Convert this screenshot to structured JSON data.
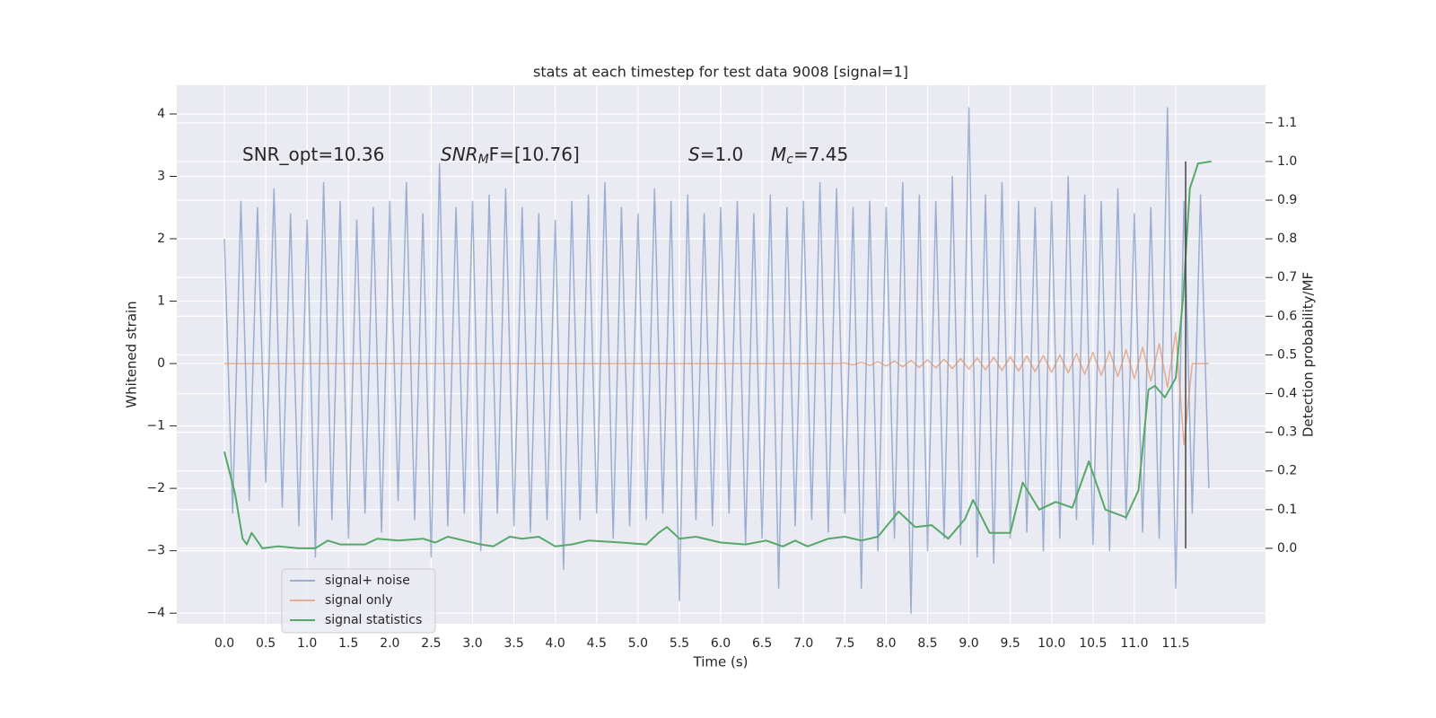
{
  "chart_data": {
    "type": "line",
    "title": "stats at each timestep for test data 9008 [signal=1]",
    "x_label": "Time (s)",
    "y_label": "Whitened strain",
    "y2_label": "Detection probability/MF",
    "annotations": [
      {
        "parts": [
          "SNR_opt=10.36"
        ]
      },
      {
        "parts": [
          "SNR",
          "M",
          "F=[10.76]"
        ]
      },
      {
        "parts": [
          "S",
          "=1.0"
        ]
      },
      {
        "parts": [
          "M",
          "c",
          "=7.45"
        ]
      }
    ],
    "xlim": [
      -0.575,
      12.585
    ],
    "ylim": [
      -4.17,
      4.46
    ],
    "y2lim": [
      -0.195,
      1.197
    ],
    "xticks": [
      {
        "value": 0,
        "label": "0.0"
      },
      {
        "value": 0.5,
        "label": "0.5"
      },
      {
        "value": 1,
        "label": "1.0"
      },
      {
        "value": 1.5,
        "label": "1.5"
      },
      {
        "value": 2,
        "label": "2.0"
      },
      {
        "value": 2.5,
        "label": "2.5"
      },
      {
        "value": 3,
        "label": "3.0"
      },
      {
        "value": 3.5,
        "label": "3.5"
      },
      {
        "value": 4,
        "label": "4.0"
      },
      {
        "value": 4.5,
        "label": "4.5"
      },
      {
        "value": 5,
        "label": "5.0"
      },
      {
        "value": 5.5,
        "label": "5.5"
      },
      {
        "value": 6,
        "label": "6.0"
      },
      {
        "value": 6.5,
        "label": "6.5"
      },
      {
        "value": 7,
        "label": "7.0"
      },
      {
        "value": 7.5,
        "label": "7.5"
      },
      {
        "value": 8,
        "label": "8.0"
      },
      {
        "value": 8.5,
        "label": "8.5"
      },
      {
        "value": 9,
        "label": "9.0"
      },
      {
        "value": 9.5,
        "label": "9.5"
      },
      {
        "value": 10,
        "label": "10.0"
      },
      {
        "value": 10.5,
        "label": "10.5"
      },
      {
        "value": 11,
        "label": "11.0"
      },
      {
        "value": 11.5,
        "label": "11.5"
      }
    ],
    "yticks": [
      {
        "value": -4,
        "label": "−4"
      },
      {
        "value": -3,
        "label": "−3"
      },
      {
        "value": -2,
        "label": "−2"
      },
      {
        "value": -1,
        "label": "−1"
      },
      0,
      1,
      2,
      3,
      4
    ],
    "y2ticks": [
      {
        "value": 0,
        "label": "0.0"
      },
      {
        "value": 0.1,
        "label": "0.1"
      },
      {
        "value": 0.2,
        "label": "0.2"
      },
      {
        "value": 0.3,
        "label": "0.3"
      },
      {
        "value": 0.4,
        "label": "0.4"
      },
      {
        "value": 0.5,
        "label": "0.5"
      },
      {
        "value": 0.6,
        "label": "0.6"
      },
      {
        "value": 0.7,
        "label": "0.7"
      },
      {
        "value": 0.8,
        "label": "0.8"
      },
      {
        "value": 0.9,
        "label": "0.9"
      },
      {
        "value": 1,
        "label": "1.0"
      },
      {
        "value": 1.1,
        "label": "1.1"
      }
    ],
    "grid": true,
    "legend": "lower left",
    "series": [
      {
        "name": "signal+ noise",
        "color": "#4c72b0",
        "opacity": 0.5,
        "x": [
          0.0,
          0.1,
          0.2,
          0.3,
          0.4,
          0.5,
          0.6,
          0.7,
          0.8,
          0.9,
          1.0,
          1.1,
          1.2,
          1.3,
          1.4,
          1.5,
          1.6,
          1.7,
          1.8,
          1.9,
          2.0,
          2.1,
          2.2,
          2.3,
          2.4,
          2.5,
          2.6,
          2.7,
          2.8,
          2.9,
          3.0,
          3.1,
          3.2,
          3.3,
          3.4,
          3.5,
          3.6,
          3.7,
          3.8,
          3.9,
          4.0,
          4.1,
          4.2,
          4.3,
          4.4,
          4.5,
          4.6,
          4.7,
          4.8,
          4.9,
          5.0,
          5.1,
          5.2,
          5.3,
          5.4,
          5.5,
          5.6,
          5.7,
          5.8,
          5.9,
          6.0,
          6.1,
          6.2,
          6.3,
          6.4,
          6.5,
          6.6,
          6.7,
          6.8,
          6.9,
          7.0,
          7.1,
          7.2,
          7.3,
          7.4,
          7.5,
          7.6,
          7.7,
          7.8,
          7.9,
          8.0,
          8.1,
          8.2,
          8.3,
          8.4,
          8.5,
          8.6,
          8.7,
          8.8,
          8.9,
          9.0,
          9.1,
          9.2,
          9.3,
          9.4,
          9.5,
          9.6,
          9.7,
          9.8,
          9.9,
          10.0,
          10.1,
          10.2,
          10.3,
          10.4,
          10.5,
          10.6,
          10.7,
          10.8,
          10.9,
          11.0,
          11.1,
          11.2,
          11.3,
          11.4,
          11.5,
          11.6,
          11.7,
          11.8,
          11.9
        ],
        "values": [
          2.0,
          -2.4,
          2.6,
          -2.2,
          2.5,
          -1.9,
          2.8,
          -2.3,
          2.4,
          -2.6,
          2.3,
          -3.1,
          2.9,
          -2.5,
          2.6,
          -2.8,
          2.3,
          -2.4,
          2.5,
          -2.7,
          2.6,
          -2.2,
          2.9,
          -2.5,
          2.4,
          -3.1,
          3.2,
          -2.6,
          2.5,
          -2.4,
          2.6,
          -3.0,
          2.7,
          -2.4,
          2.8,
          -2.6,
          2.5,
          -2.7,
          2.4,
          -2.5,
          2.3,
          -3.3,
          2.6,
          -2.5,
          2.7,
          -2.4,
          2.9,
          -2.8,
          2.5,
          -2.6,
          2.4,
          -2.5,
          2.8,
          -2.4,
          2.6,
          -3.8,
          2.7,
          -2.5,
          2.4,
          -2.6,
          2.5,
          -2.4,
          2.6,
          -2.9,
          2.4,
          -2.8,
          2.7,
          -3.6,
          2.5,
          -2.6,
          2.6,
          -2.5,
          2.9,
          -2.7,
          2.8,
          -2.4,
          2.5,
          -3.6,
          2.6,
          -3.0,
          2.5,
          -2.8,
          2.9,
          -4.0,
          2.7,
          -3.0,
          2.6,
          -2.8,
          3.0,
          -2.9,
          4.1,
          -3.1,
          2.7,
          -3.2,
          2.9,
          -2.8,
          2.6,
          -2.7,
          2.5,
          -3.0,
          2.6,
          -2.8,
          3.0,
          -2.5,
          2.7,
          -2.9,
          2.6,
          -3.0,
          2.8,
          -2.5,
          2.4,
          -2.7,
          2.5,
          -2.8,
          4.1,
          -3.6,
          2.6,
          -2.4,
          2.7,
          -2.0
        ]
      },
      {
        "name": "signal only",
        "color": "#dd8452",
        "opacity": 0.6,
        "x": [
          0.0,
          0.1,
          0.2,
          0.3,
          0.4,
          0.5,
          0.6,
          0.7,
          0.8,
          0.9,
          1.0,
          1.1,
          1.2,
          1.3,
          1.4,
          1.5,
          1.6,
          1.7,
          1.8,
          1.9,
          2.0,
          2.1,
          2.2,
          2.3,
          2.4,
          2.5,
          2.6,
          2.7,
          2.8,
          2.9,
          3.0,
          3.1,
          3.2,
          3.3,
          3.4,
          3.5,
          3.6,
          3.7,
          3.8,
          3.9,
          4.0,
          4.1,
          4.2,
          4.3,
          4.4,
          4.5,
          4.6,
          4.7,
          4.8,
          4.9,
          5.0,
          5.1,
          5.2,
          5.3,
          5.4,
          5.5,
          5.6,
          5.7,
          5.8,
          5.9,
          6.0,
          6.1,
          6.2,
          6.3,
          6.4,
          6.5,
          6.6,
          6.7,
          6.8,
          6.9,
          7.0,
          7.1,
          7.2,
          7.3,
          7.4,
          7.5,
          7.6,
          7.7,
          7.8,
          7.9,
          8.0,
          8.1,
          8.2,
          8.3,
          8.4,
          8.5,
          8.6,
          8.7,
          8.8,
          8.9,
          9.0,
          9.1,
          9.2,
          9.3,
          9.4,
          9.5,
          9.6,
          9.7,
          9.8,
          9.9,
          10.0,
          10.1,
          10.2,
          10.3,
          10.4,
          10.5,
          10.6,
          10.7,
          10.8,
          10.9,
          11.0,
          11.1,
          11.2,
          11.3,
          11.4,
          11.5,
          11.6,
          11.7,
          11.8,
          11.9
        ],
        "values": [
          0,
          0,
          0,
          0,
          0,
          0,
          0,
          0,
          0,
          0,
          0,
          0,
          0,
          0,
          0,
          0,
          0,
          0,
          0,
          0,
          0,
          0,
          0,
          0,
          0,
          0,
          0,
          0,
          0,
          0,
          0,
          0,
          0,
          0,
          0,
          0,
          0,
          0,
          0,
          0,
          0,
          0,
          0,
          0,
          0,
          0,
          0,
          0,
          0,
          0,
          0,
          0,
          0,
          0,
          0,
          0,
          0,
          0,
          0,
          0,
          0,
          0,
          0,
          0,
          0,
          0,
          0,
          0,
          0,
          0,
          0,
          0,
          0,
          0,
          0,
          0.01,
          -0.02,
          0.02,
          -0.03,
          0.03,
          -0.04,
          0.04,
          -0.05,
          0.05,
          -0.06,
          0.06,
          -0.07,
          0.07,
          -0.08,
          0.08,
          -0.09,
          0.09,
          -0.1,
          0.1,
          -0.11,
          0.11,
          -0.12,
          0.12,
          -0.13,
          0.13,
          -0.14,
          0.14,
          -0.15,
          0.16,
          -0.17,
          0.18,
          -0.19,
          0.2,
          -0.21,
          0.22,
          -0.24,
          0.26,
          -0.28,
          0.32,
          -0.38,
          0.5,
          -1.3,
          0,
          0,
          0
        ]
      },
      {
        "name": "signal statistics",
        "color": "#55a868",
        "opacity": 1,
        "axis": "y2",
        "x": [
          0.0,
          0.13,
          0.22,
          0.27,
          0.33,
          0.46,
          0.65,
          0.9,
          1.1,
          1.25,
          1.4,
          1.7,
          1.85,
          2.1,
          2.4,
          2.55,
          2.7,
          2.9,
          3.1,
          3.25,
          3.45,
          3.6,
          3.8,
          4.0,
          4.2,
          4.4,
          4.8,
          5.1,
          5.25,
          5.35,
          5.5,
          5.7,
          6.0,
          6.3,
          6.55,
          6.75,
          6.9,
          7.05,
          7.3,
          7.5,
          7.7,
          7.9,
          8.15,
          8.35,
          8.55,
          8.75,
          8.95,
          9.05,
          9.25,
          9.5,
          9.65,
          9.85,
          10.05,
          10.25,
          10.45,
          10.65,
          10.9,
          11.05,
          11.17,
          11.25,
          11.37,
          11.5,
          11.59,
          11.67,
          11.77,
          11.93
        ],
        "values": [
          0.25,
          0.14,
          0.025,
          0.01,
          0.04,
          0.0,
          0.005,
          0.0,
          0.0,
          0.02,
          0.01,
          0.01,
          0.025,
          0.02,
          0.025,
          0.015,
          0.03,
          0.02,
          0.01,
          0.005,
          0.03,
          0.025,
          0.03,
          0.005,
          0.01,
          0.02,
          0.015,
          0.01,
          0.04,
          0.055,
          0.025,
          0.03,
          0.015,
          0.01,
          0.02,
          0.005,
          0.02,
          0.005,
          0.025,
          0.03,
          0.02,
          0.03,
          0.095,
          0.055,
          0.06,
          0.025,
          0.075,
          0.125,
          0.04,
          0.04,
          0.17,
          0.1,
          0.12,
          0.105,
          0.225,
          0.1,
          0.08,
          0.15,
          0.41,
          0.42,
          0.39,
          0.44,
          0.65,
          0.93,
          0.995,
          1.0
        ]
      }
    ],
    "vline": {
      "x": 11.62,
      "ymin": 0,
      "ymax": 1,
      "axis": "y2",
      "color": "#444444"
    }
  }
}
